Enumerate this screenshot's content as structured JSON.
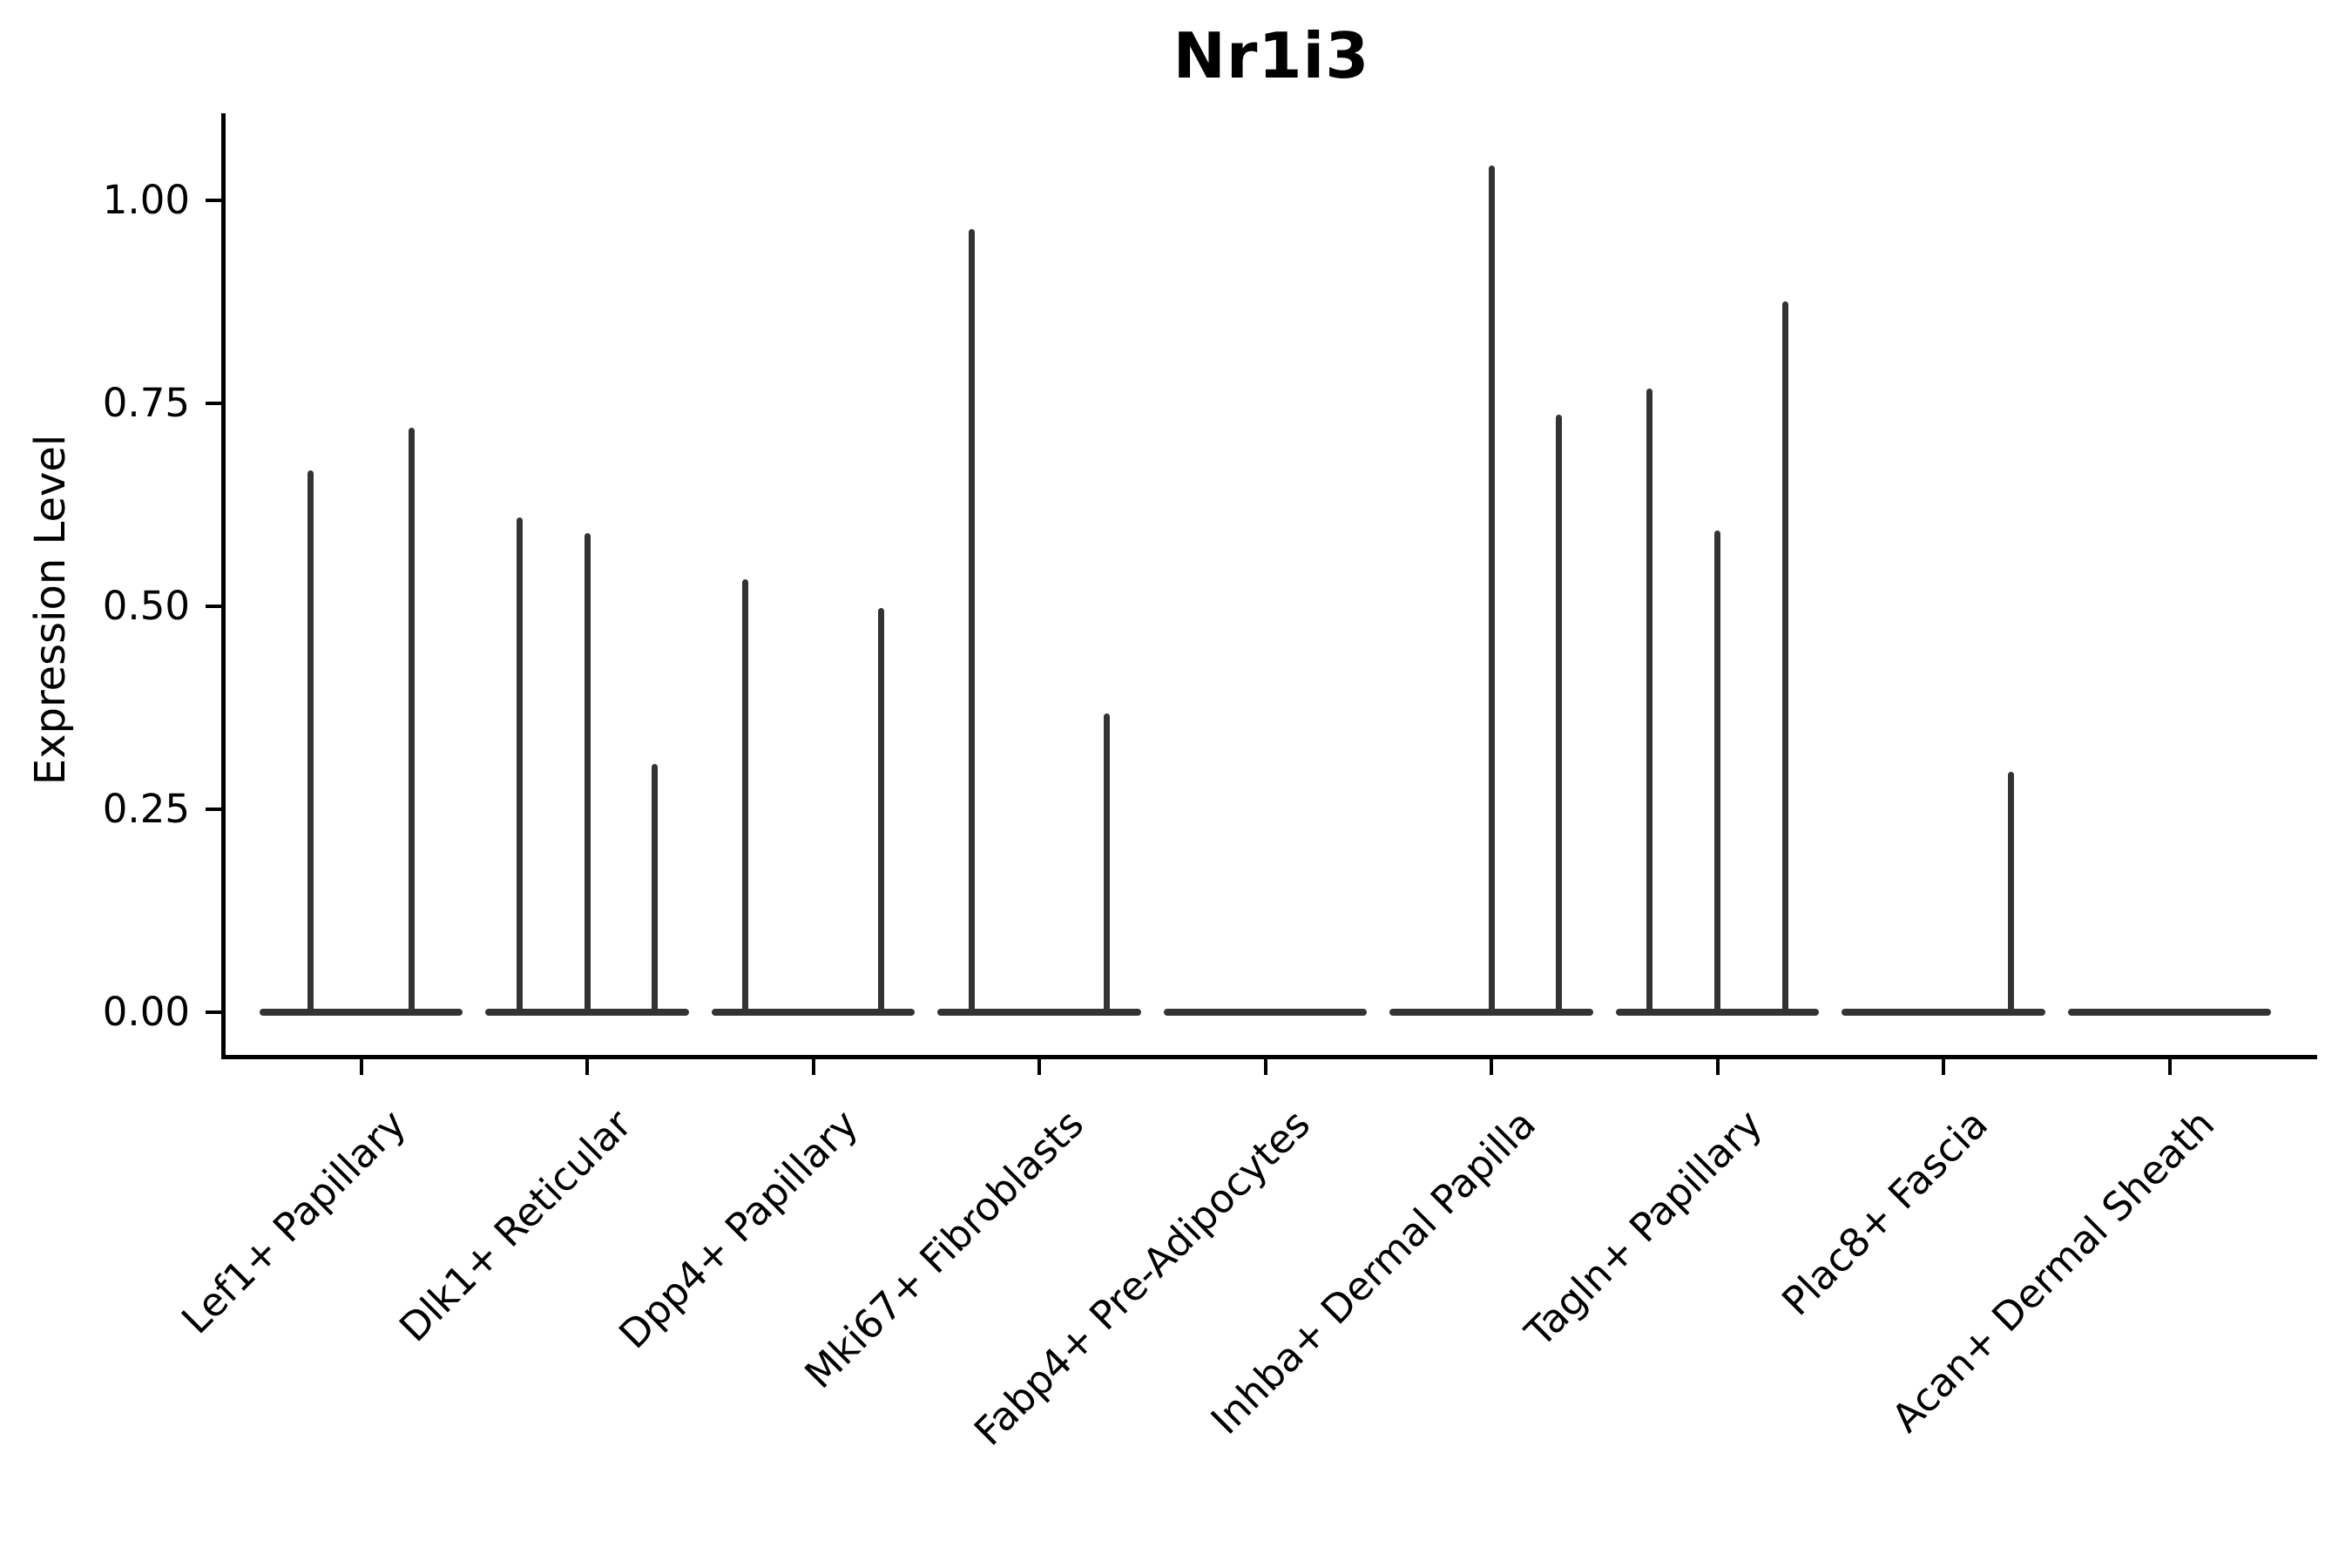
{
  "chart_data": {
    "type": "violin",
    "title": "Nr1i3",
    "xlabel": "",
    "ylabel": "Expression Level",
    "ylim": [
      -0.053,
      1.107
    ],
    "yticks": [
      0.0,
      0.25,
      0.5,
      0.75,
      1.0
    ],
    "ytick_labels": [
      "0.00",
      "0.25",
      "0.50",
      "0.75",
      "1.00"
    ],
    "grid": false,
    "legend": false,
    "background": "#ffffff",
    "axis_color": "#000000",
    "violin_color": "#333333",
    "categories": [
      "Lef1+ Papillary",
      "Dlk1+ Reticular",
      "Dpp4+ Papillary",
      "Mki67+ Fibroblasts",
      "Fabp4+ Pre-Adipocytes",
      "Inhba+ Dermal Papilla",
      "Tagln+ Papillary",
      "Plac8+ Fascia",
      "Acan+ Dermal Sheath"
    ],
    "series": [
      {
        "category": "Lef1+ Papillary",
        "base_extent": 0.9,
        "spikes": [
          {
            "offset": -0.225,
            "max": 0.667
          },
          {
            "offset": 0.225,
            "max": 0.72
          }
        ]
      },
      {
        "category": "Dlk1+ Reticular",
        "base_extent": 0.9,
        "spikes": [
          {
            "offset": -0.3,
            "max": 0.609
          },
          {
            "offset": 0.0,
            "max": 0.59
          },
          {
            "offset": 0.3,
            "max": 0.306
          }
        ]
      },
      {
        "category": "Dpp4+ Papillary",
        "base_extent": 0.9,
        "spikes": [
          {
            "offset": -0.3,
            "max": 0.533
          },
          {
            "offset": 0.3,
            "max": 0.498
          }
        ]
      },
      {
        "category": "Mki67+ Fibroblasts",
        "base_extent": 0.9,
        "spikes": [
          {
            "offset": -0.3,
            "max": 0.965
          },
          {
            "offset": 0.3,
            "max": 0.368
          }
        ]
      },
      {
        "category": "Fabp4+ Pre-Adipocytes",
        "base_extent": 0.9,
        "spikes": []
      },
      {
        "category": "Inhba+ Dermal Papilla",
        "base_extent": 0.9,
        "spikes": [
          {
            "offset": 0.0,
            "max": 1.043
          },
          {
            "offset": 0.3,
            "max": 0.736
          }
        ]
      },
      {
        "category": "Tagln+ Papillary",
        "base_extent": 0.9,
        "spikes": [
          {
            "offset": -0.3,
            "max": 0.768
          },
          {
            "offset": 0.0,
            "max": 0.593
          },
          {
            "offset": 0.3,
            "max": 0.876
          }
        ]
      },
      {
        "category": "Plac8+ Fascia",
        "base_extent": 0.9,
        "spikes": [
          {
            "offset": 0.3,
            "max": 0.296
          }
        ]
      },
      {
        "category": "Acan+ Dermal Sheath",
        "base_extent": 0.9,
        "spikes": []
      }
    ]
  }
}
